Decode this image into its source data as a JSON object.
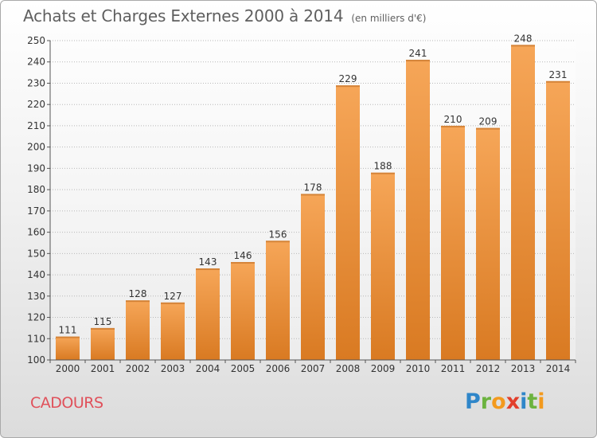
{
  "header": {
    "title": "Achats et Charges Externes 2000 à 2014",
    "subtitle": "(en milliers d'€)"
  },
  "footer": {
    "commune": "CADOURS",
    "brand_letters": [
      {
        "ch": "P",
        "color": "#2f86c9"
      },
      {
        "ch": "r",
        "color": "#6cb33f"
      },
      {
        "ch": "o",
        "color": "#f39a1e"
      },
      {
        "ch": "x",
        "color": "#e23f2c"
      },
      {
        "ch": "i",
        "color": "#2f86c9"
      },
      {
        "ch": "t",
        "color": "#6cb33f"
      },
      {
        "ch": "i",
        "color": "#f39a1e"
      }
    ]
  },
  "colors": {
    "bar_light": "#f6a658",
    "bar_dark": "#d97a22",
    "grid": "#b8b8b8",
    "axis": "#555555",
    "text": "#333333"
  },
  "chart_data": {
    "type": "bar",
    "title": "Achats et Charges Externes 2000 à 2014",
    "subtitle": "(en milliers d'€)",
    "categories": [
      "2000",
      "2001",
      "2002",
      "2003",
      "2004",
      "2005",
      "2006",
      "2007",
      "2008",
      "2009",
      "2010",
      "2011",
      "2012",
      "2013",
      "2014"
    ],
    "values": [
      111,
      115,
      128,
      127,
      143,
      146,
      156,
      178,
      229,
      188,
      241,
      210,
      209,
      248,
      231
    ],
    "ylim": [
      100,
      250
    ],
    "yticks": [
      100,
      110,
      120,
      130,
      140,
      150,
      160,
      170,
      180,
      190,
      200,
      210,
      220,
      230,
      240,
      250
    ],
    "grid": true,
    "data_labels": true
  }
}
